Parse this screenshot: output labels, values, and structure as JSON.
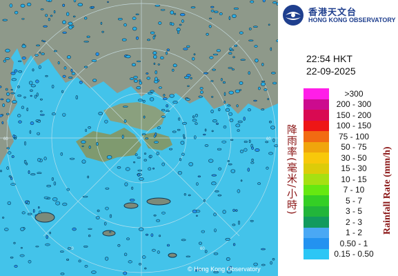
{
  "observatory": {
    "name_cn": "香港天文台",
    "name_en": "HONG KONG OBSERVATORY"
  },
  "time": "22:54 HKT",
  "date": "22-09-2025",
  "map": {
    "copyright": "© Hong Kong Observatory",
    "range_ring_labels": [
      "60",
      "60",
      "60",
      "60"
    ]
  },
  "legend": {
    "title_cn": "降雨率(毫米/小時)",
    "title_en": "Rainfall Rate (mm/h)",
    "items": [
      {
        "label": ">300",
        "color": "#ff1ee8"
      },
      {
        "label": "200 - 300",
        "color": "#cc0b8e"
      },
      {
        "label": "150 - 200",
        "color": "#d90a52"
      },
      {
        "label": "100 - 150",
        "color": "#ee1616"
      },
      {
        "label": "75 - 100",
        "color": "#f26b12"
      },
      {
        "label": "50 - 75",
        "color": "#f0a50c"
      },
      {
        "label": "30 - 50",
        "color": "#f8c80a"
      },
      {
        "label": "15 - 30",
        "color": "#dccc09"
      },
      {
        "label": "10 - 15",
        "color": "#a6e012"
      },
      {
        "label": "7 - 10",
        "color": "#66e811"
      },
      {
        "label": "5 - 7",
        "color": "#34cf25"
      },
      {
        "label": "3 - 5",
        "color": "#22b53a"
      },
      {
        "label": "2 - 3",
        "color": "#129a5e"
      },
      {
        "label": "1 - 2",
        "color": "#4aa8f4"
      },
      {
        "label": "0.50 - 1",
        "color": "#2392f0"
      },
      {
        "label": "0.15 - 0.50",
        "color": "#2cc6f5"
      }
    ]
  },
  "colors": {
    "sea": "#43c3ea",
    "land": "#8f9a8c",
    "rain_light": "#2bb0e6",
    "rain_outline": "#0d3550"
  }
}
